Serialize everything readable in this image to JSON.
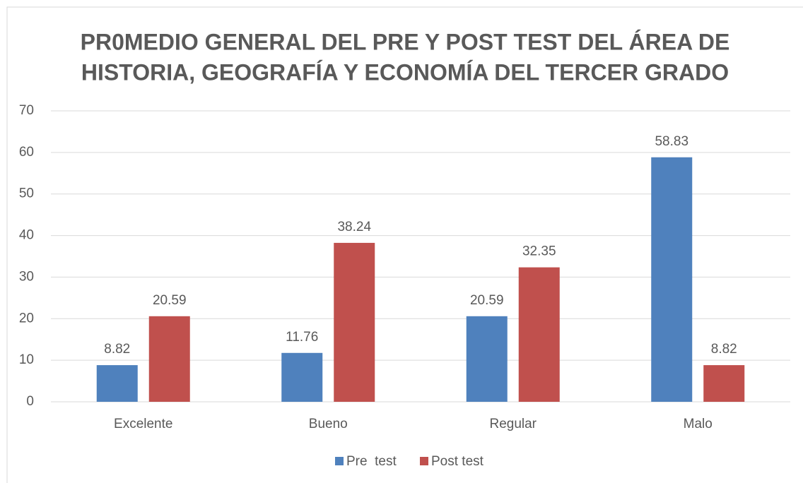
{
  "chart_data": {
    "type": "bar",
    "title": [
      "PR0MEDIO GENERAL DEL PRE Y POST TEST DEL ÁREA DE",
      "HISTORIA, GEOGRAFÍA Y ECONOMÍA DEL TERCER GRADO"
    ],
    "categories": [
      "Excelente",
      "Bueno",
      "Regular",
      "Malo"
    ],
    "series": [
      {
        "name": "Pre  test",
        "color": "#4f81bd",
        "values": [
          8.82,
          11.76,
          20.59,
          58.83
        ]
      },
      {
        "name": "Post test",
        "color": "#c0504d",
        "values": [
          20.59,
          38.24,
          32.35,
          8.82
        ]
      }
    ],
    "ylim": [
      0,
      70
    ],
    "yticks": [
      0,
      10,
      20,
      30,
      40,
      50,
      60,
      70
    ],
    "grid": true,
    "legend": "bottom"
  }
}
